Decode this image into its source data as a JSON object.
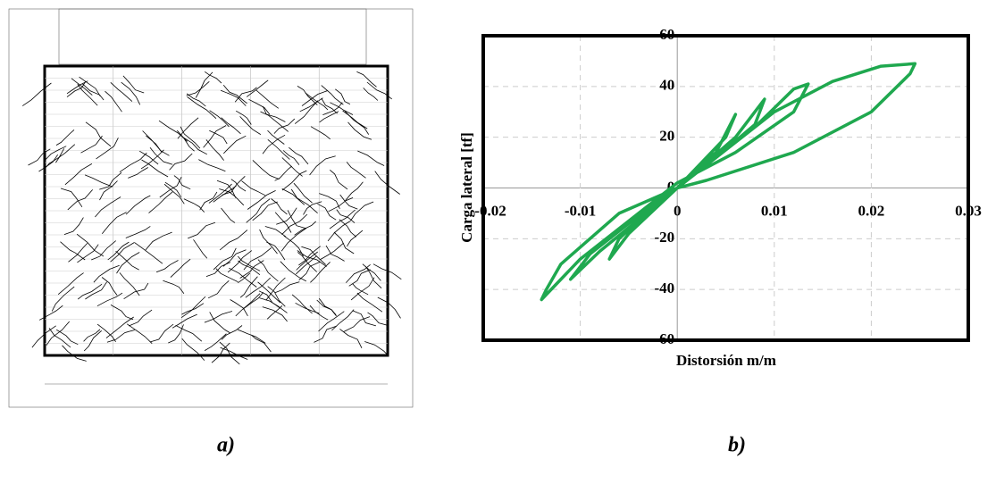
{
  "captions": [
    "a)",
    "b)"
  ],
  "chart_data": {
    "type": "line",
    "xlabel": "Distorsión m/m",
    "ylabel": "Carga lateral [tf]",
    "xlim": [
      -0.02,
      0.03
    ],
    "xticks": [
      -0.02,
      -0.01,
      0,
      0.01,
      0.02,
      0.03
    ],
    "ylim": [
      -60,
      60
    ],
    "yticks": [
      -60,
      -40,
      -20,
      0,
      20,
      40,
      60
    ],
    "grid": true,
    "x": [
      0,
      0.002,
      0.004,
      0.003,
      0,
      -0.003,
      -0.004,
      -0.002,
      0,
      0.004,
      0.006,
      0.005,
      0.002,
      0,
      -0.005,
      -0.007,
      -0.006,
      -0.002,
      0,
      0.006,
      0.009,
      0.008,
      0.004,
      0,
      -0.008,
      -0.011,
      -0.009,
      -0.003,
      0,
      0.008,
      0.012,
      0.0135,
      0.012,
      0.006,
      0,
      -0.01,
      -0.014,
      -0.0135,
      -0.012,
      -0.006,
      0,
      0.01,
      0.016,
      0.021,
      0.0245,
      0.024,
      0.02,
      0.012,
      0.003,
      0
    ],
    "series": [
      {
        "color": "#1fa84f",
        "values": [
          0,
          8,
          14,
          9,
          0,
          -8,
          -12,
          -6,
          0,
          14,
          29,
          20,
          8,
          0,
          -18,
          -28,
          -20,
          -6,
          0,
          20,
          35,
          25,
          12,
          0,
          -25,
          -36,
          -26,
          -8,
          0,
          24,
          39,
          41,
          30,
          14,
          2,
          -28,
          -44,
          -40,
          -30,
          -10,
          0,
          30,
          42,
          48,
          49,
          45,
          30,
          14,
          3,
          0
        ]
      }
    ]
  }
}
